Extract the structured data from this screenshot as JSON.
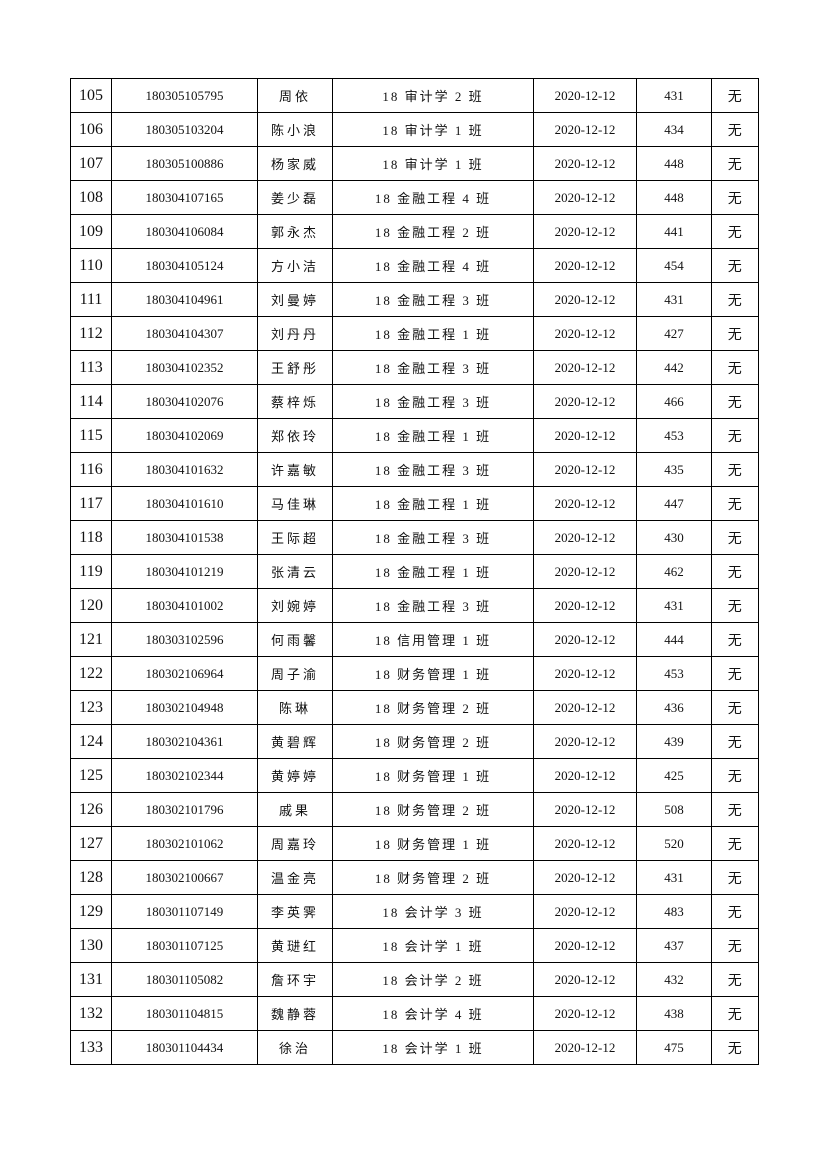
{
  "table": {
    "rows": [
      [
        "105",
        "180305105795",
        "周依",
        "18 审计学 2 班",
        "2020-12-12",
        "431",
        "无"
      ],
      [
        "106",
        "180305103204",
        "陈小浪",
        "18 审计学 1 班",
        "2020-12-12",
        "434",
        "无"
      ],
      [
        "107",
        "180305100886",
        "杨家威",
        "18 审计学 1 班",
        "2020-12-12",
        "448",
        "无"
      ],
      [
        "108",
        "180304107165",
        "姜少磊",
        "18 金融工程 4 班",
        "2020-12-12",
        "448",
        "无"
      ],
      [
        "109",
        "180304106084",
        "郭永杰",
        "18 金融工程 2 班",
        "2020-12-12",
        "441",
        "无"
      ],
      [
        "110",
        "180304105124",
        "方小洁",
        "18 金融工程 4 班",
        "2020-12-12",
        "454",
        "无"
      ],
      [
        "111",
        "180304104961",
        "刘曼婷",
        "18 金融工程 3 班",
        "2020-12-12",
        "431",
        "无"
      ],
      [
        "112",
        "180304104307",
        "刘丹丹",
        "18 金融工程 1 班",
        "2020-12-12",
        "427",
        "无"
      ],
      [
        "113",
        "180304102352",
        "王舒彤",
        "18 金融工程 3 班",
        "2020-12-12",
        "442",
        "无"
      ],
      [
        "114",
        "180304102076",
        "蔡梓烁",
        "18 金融工程 3 班",
        "2020-12-12",
        "466",
        "无"
      ],
      [
        "115",
        "180304102069",
        "郑依玲",
        "18 金融工程 1 班",
        "2020-12-12",
        "453",
        "无"
      ],
      [
        "116",
        "180304101632",
        "许嘉敏",
        "18 金融工程 3 班",
        "2020-12-12",
        "435",
        "无"
      ],
      [
        "117",
        "180304101610",
        "马佳琳",
        "18 金融工程 1 班",
        "2020-12-12",
        "447",
        "无"
      ],
      [
        "118",
        "180304101538",
        "王际超",
        "18 金融工程 3 班",
        "2020-12-12",
        "430",
        "无"
      ],
      [
        "119",
        "180304101219",
        "张清云",
        "18 金融工程 1 班",
        "2020-12-12",
        "462",
        "无"
      ],
      [
        "120",
        "180304101002",
        "刘婉婷",
        "18 金融工程 3 班",
        "2020-12-12",
        "431",
        "无"
      ],
      [
        "121",
        "180303102596",
        "何雨馨",
        "18 信用管理 1 班",
        "2020-12-12",
        "444",
        "无"
      ],
      [
        "122",
        "180302106964",
        "周子渝",
        "18 财务管理 1 班",
        "2020-12-12",
        "453",
        "无"
      ],
      [
        "123",
        "180302104948",
        "陈琳",
        "18 财务管理 2 班",
        "2020-12-12",
        "436",
        "无"
      ],
      [
        "124",
        "180302104361",
        "黄碧辉",
        "18 财务管理 2 班",
        "2020-12-12",
        "439",
        "无"
      ],
      [
        "125",
        "180302102344",
        "黄婷婷",
        "18 财务管理 1 班",
        "2020-12-12",
        "425",
        "无"
      ],
      [
        "126",
        "180302101796",
        "戚果",
        "18 财务管理 2 班",
        "2020-12-12",
        "508",
        "无"
      ],
      [
        "127",
        "180302101062",
        "周嘉玲",
        "18 财务管理 1 班",
        "2020-12-12",
        "520",
        "无"
      ],
      [
        "128",
        "180302100667",
        "温金亮",
        "18 财务管理 2 班",
        "2020-12-12",
        "431",
        "无"
      ],
      [
        "129",
        "180301107149",
        "李英霁",
        "18 会计学 3 班",
        "2020-12-12",
        "483",
        "无"
      ],
      [
        "130",
        "180301107125",
        "黄琎红",
        "18 会计学 1 班",
        "2020-12-12",
        "437",
        "无"
      ],
      [
        "131",
        "180301105082",
        "詹环宇",
        "18 会计学 2 班",
        "2020-12-12",
        "432",
        "无"
      ],
      [
        "132",
        "180301104815",
        "魏静蓉",
        "18 会计学 4 班",
        "2020-12-12",
        "438",
        "无"
      ],
      [
        "133",
        "180301104434",
        "徐治",
        "18 会计学 1 班",
        "2020-12-12",
        "475",
        "无"
      ]
    ]
  }
}
